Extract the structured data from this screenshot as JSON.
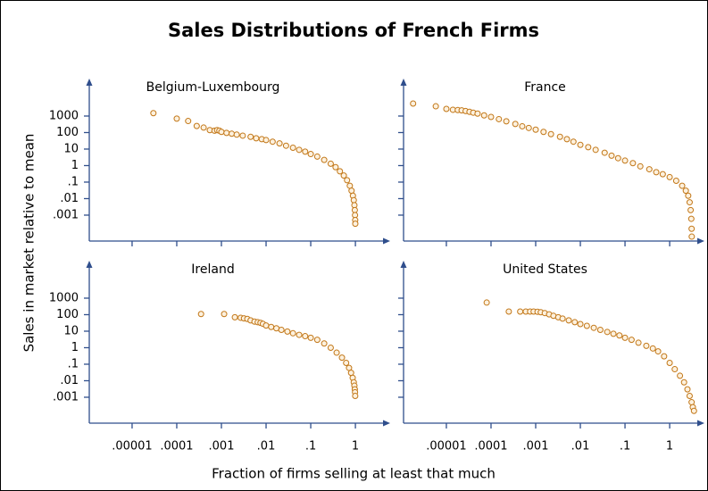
{
  "chart_data": {
    "title": "Sales Distributions of French Firms",
    "x_label": "Fraction of firms selling at least that much",
    "y_label": "Sales in market relative to mean",
    "xscale": "log",
    "yscale": "log",
    "xlim": [
      1.1e-06,
      6
    ],
    "ylim": [
      2.7e-05,
      186000
    ],
    "xticks": [
      {
        "value": 1e-05,
        "label": ".00001"
      },
      {
        "value": 0.0001,
        "label": ".0001"
      },
      {
        "value": 0.001,
        "label": ".001"
      },
      {
        "value": 0.01,
        "label": ".01"
      },
      {
        "value": 0.1,
        "label": ".1"
      },
      1
    ],
    "yticks": [
      1000,
      100,
      10,
      1,
      {
        "value": 0.1,
        "label": ".1"
      },
      {
        "value": 0.01,
        "label": ".01"
      },
      {
        "value": 0.001,
        "label": ".001"
      }
    ],
    "panels": [
      {
        "type": "scatter",
        "title": "Belgium-Luxembourg",
        "color": "#c27718",
        "x": [
          3e-05,
          0.0001,
          0.00018,
          0.00028,
          0.0004,
          0.00055,
          0.0007,
          0.0008,
          0.0009,
          0.001,
          0.0013,
          0.0017,
          0.0022,
          0.003,
          0.0045,
          0.006,
          0.008,
          0.01,
          0.014,
          0.02,
          0.028,
          0.04,
          0.055,
          0.075,
          0.1,
          0.14,
          0.2,
          0.28,
          0.36,
          0.45,
          0.55,
          0.65,
          0.75,
          0.82,
          0.88,
          0.92,
          0.95,
          0.97,
          0.98,
          0.99,
          0.995
        ],
        "y": [
          1500,
          700,
          500,
          250,
          200,
          140,
          130,
          140,
          130,
          110,
          95,
          85,
          75,
          65,
          55,
          45,
          40,
          35,
          28,
          22,
          16,
          12,
          9,
          7,
          5,
          3.5,
          2.2,
          1.3,
          0.8,
          0.45,
          0.25,
          0.13,
          0.06,
          0.03,
          0.015,
          0.008,
          0.004,
          0.002,
          0.001,
          0.0005,
          0.0003
        ]
      },
      {
        "type": "scatter",
        "title": "France",
        "color": "#c27718",
        "x": [
          1.8e-06,
          5.8e-06,
          1e-05,
          1.4e-05,
          1.8e-05,
          2.2e-05,
          2.7e-05,
          3.3e-05,
          4e-05,
          5e-05,
          7e-05,
          0.0001,
          0.00015,
          0.00022,
          0.00035,
          0.0005,
          0.0007,
          0.001,
          0.0015,
          0.0022,
          0.0035,
          0.005,
          0.007,
          0.01,
          0.015,
          0.022,
          0.035,
          0.05,
          0.07,
          0.1,
          0.15,
          0.22,
          0.35,
          0.5,
          0.7,
          1,
          1.4,
          1.9,
          2.3,
          2.6,
          2.8,
          2.95,
          3.05,
          3.1,
          3.12
        ],
        "y": [
          5700,
          3900,
          2700,
          2400,
          2300,
          2200,
          2000,
          1800,
          1600,
          1400,
          1100,
          880,
          650,
          480,
          330,
          240,
          190,
          150,
          110,
          80,
          55,
          40,
          28,
          18,
          13,
          9,
          6,
          4,
          2.8,
          2,
          1.4,
          0.9,
          0.6,
          0.4,
          0.3,
          0.2,
          0.12,
          0.06,
          0.03,
          0.015,
          0.006,
          0.002,
          0.0006,
          0.00015,
          5e-05
        ]
      },
      {
        "type": "scatter",
        "title": "Ireland",
        "color": "#c27718",
        "x": [
          0.00035,
          0.00115,
          0.002,
          0.0027,
          0.0032,
          0.0038,
          0.0045,
          0.0055,
          0.0065,
          0.0075,
          0.0085,
          0.01,
          0.013,
          0.017,
          0.022,
          0.03,
          0.04,
          0.055,
          0.075,
          0.1,
          0.14,
          0.2,
          0.28,
          0.38,
          0.5,
          0.62,
          0.72,
          0.8,
          0.87,
          0.92,
          0.95,
          0.97,
          0.98,
          0.99
        ],
        "y": [
          110,
          110,
          70,
          65,
          60,
          55,
          45,
          38,
          35,
          32,
          28,
          22,
          18,
          15,
          12,
          9.5,
          7.5,
          6,
          5,
          4,
          3,
          1.8,
          1,
          0.5,
          0.25,
          0.12,
          0.06,
          0.03,
          0.015,
          0.008,
          0.005,
          0.003,
          0.002,
          0.0012
        ]
      },
      {
        "type": "scatter",
        "title": "United States",
        "color": "#c27718",
        "x": [
          8e-05,
          0.00025,
          0.00045,
          0.0006,
          0.00075,
          0.0009,
          0.0011,
          0.0013,
          0.0016,
          0.002,
          0.0025,
          0.0032,
          0.004,
          0.0055,
          0.0075,
          0.01,
          0.014,
          0.02,
          0.028,
          0.04,
          0.055,
          0.075,
          0.1,
          0.14,
          0.2,
          0.3,
          0.42,
          0.55,
          0.75,
          1,
          1.3,
          1.7,
          2.1,
          2.5,
          2.8,
          3.1,
          3.3,
          3.5
        ],
        "y": [
          540,
          155,
          155,
          155,
          155,
          155,
          150,
          140,
          125,
          105,
          85,
          70,
          58,
          45,
          35,
          27,
          21,
          16,
          12,
          9,
          7,
          5.5,
          4,
          3,
          2,
          1.3,
          0.9,
          0.6,
          0.3,
          0.12,
          0.05,
          0.02,
          0.008,
          0.003,
          0.0012,
          0.0005,
          0.00025,
          0.00015
        ]
      }
    ]
  }
}
